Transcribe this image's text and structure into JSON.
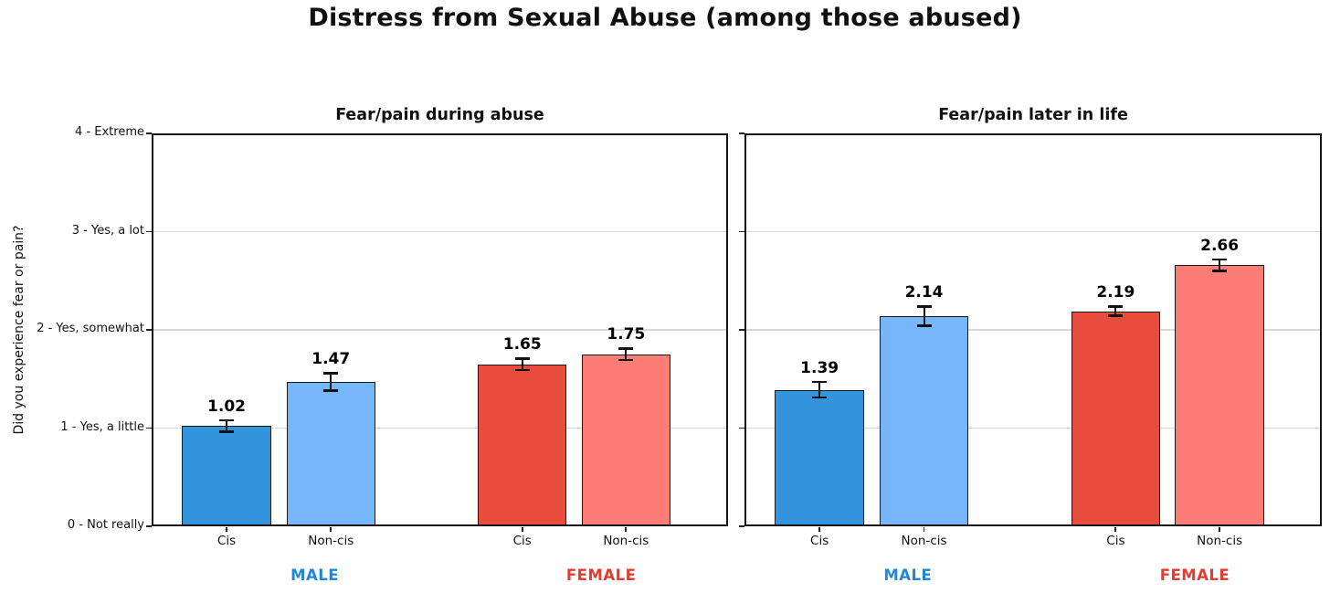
{
  "title": "Distress from Sexual Abuse (among those abused)",
  "chart_data": {
    "type": "bar",
    "title": "Distress from Sexual Abuse (among those abused)",
    "ylabel": "Did you experience fear or pain?",
    "ylim": [
      0,
      4
    ],
    "grid": "horizontal",
    "ytick_values": [
      0,
      1,
      2,
      3,
      4
    ],
    "ytick_labels": [
      "0 - Not really",
      "1 - Yes, a little",
      "2 - Yes, somewhat",
      "3 - Yes, a lot",
      "4 - Extreme"
    ],
    "categories": [
      "Cis",
      "Non-cis"
    ],
    "panels": [
      {
        "title": "Fear/pain during abuse",
        "groups": [
          {
            "label": "MALE",
            "label_color": "#2087dc",
            "bars": [
              {
                "category": "Cis",
                "value": 1.02,
                "error": 0.06,
                "color": "#3394db"
              },
              {
                "category": "Non-cis",
                "value": 1.47,
                "error": 0.09,
                "color": "#76b6fa"
              }
            ]
          },
          {
            "label": "FEMALE",
            "label_color": "#e63a2e",
            "bars": [
              {
                "category": "Cis",
                "value": 1.65,
                "error": 0.06,
                "color": "#e74c3c"
              },
              {
                "category": "Non-cis",
                "value": 1.75,
                "error": 0.06,
                "color": "#fc7d76"
              }
            ]
          }
        ]
      },
      {
        "title": "Fear/pain later in life",
        "groups": [
          {
            "label": "MALE",
            "label_color": "#2087dc",
            "bars": [
              {
                "category": "Cis",
                "value": 1.39,
                "error": 0.08,
                "color": "#3394db"
              },
              {
                "category": "Non-cis",
                "value": 2.14,
                "error": 0.1,
                "color": "#76b6fa"
              }
            ]
          },
          {
            "label": "FEMALE",
            "label_color": "#e63a2e",
            "bars": [
              {
                "category": "Cis",
                "value": 2.19,
                "error": 0.05,
                "color": "#e74c3c"
              },
              {
                "category": "Non-cis",
                "value": 2.66,
                "error": 0.06,
                "color": "#fc7d76"
              }
            ]
          }
        ]
      }
    ]
  }
}
